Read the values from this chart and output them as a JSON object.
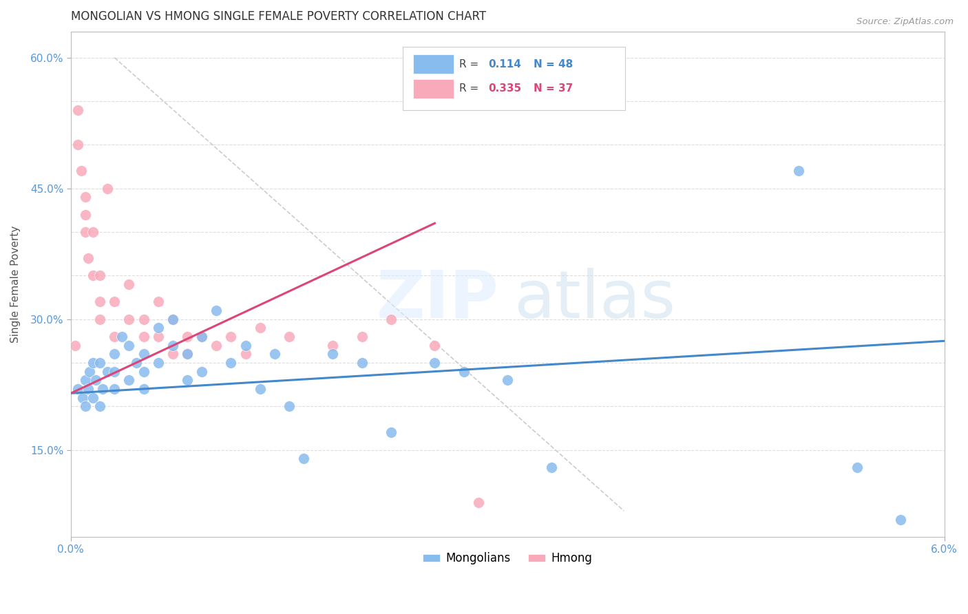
{
  "title": "MONGOLIAN VS HMONG SINGLE FEMALE POVERTY CORRELATION CHART",
  "source": "Source: ZipAtlas.com",
  "ylabel": "Single Female Poverty",
  "x_min": 0.0,
  "x_max": 0.06,
  "y_min": 0.05,
  "y_max": 0.63,
  "mongolian_R": 0.114,
  "mongolian_N": 48,
  "hmong_R": 0.335,
  "hmong_N": 37,
  "mongolian_color": "#88bbee",
  "hmong_color": "#f8aabb",
  "mongolian_line_color": "#4488cc",
  "hmong_line_color": "#dd4477",
  "diagonal_color": "#cccccc",
  "mongolian_x": [
    0.0005,
    0.0008,
    0.001,
    0.001,
    0.0012,
    0.0013,
    0.0015,
    0.0015,
    0.0017,
    0.002,
    0.002,
    0.0022,
    0.0025,
    0.003,
    0.003,
    0.003,
    0.0035,
    0.004,
    0.004,
    0.0045,
    0.005,
    0.005,
    0.005,
    0.006,
    0.006,
    0.007,
    0.007,
    0.008,
    0.008,
    0.009,
    0.009,
    0.01,
    0.011,
    0.012,
    0.013,
    0.014,
    0.015,
    0.016,
    0.018,
    0.02,
    0.022,
    0.025,
    0.027,
    0.03,
    0.033,
    0.05,
    0.054,
    0.057
  ],
  "mongolian_y": [
    0.22,
    0.21,
    0.23,
    0.2,
    0.22,
    0.24,
    0.21,
    0.25,
    0.23,
    0.2,
    0.25,
    0.22,
    0.24,
    0.26,
    0.22,
    0.24,
    0.28,
    0.23,
    0.27,
    0.25,
    0.26,
    0.22,
    0.24,
    0.29,
    0.25,
    0.27,
    0.3,
    0.23,
    0.26,
    0.24,
    0.28,
    0.31,
    0.25,
    0.27,
    0.22,
    0.26,
    0.2,
    0.14,
    0.26,
    0.25,
    0.17,
    0.25,
    0.24,
    0.23,
    0.13,
    0.47,
    0.13,
    0.07
  ],
  "hmong_x": [
    0.0003,
    0.0005,
    0.0005,
    0.0007,
    0.001,
    0.001,
    0.001,
    0.0012,
    0.0015,
    0.0015,
    0.002,
    0.002,
    0.002,
    0.0025,
    0.003,
    0.003,
    0.004,
    0.004,
    0.005,
    0.005,
    0.006,
    0.006,
    0.007,
    0.007,
    0.008,
    0.008,
    0.009,
    0.01,
    0.011,
    0.012,
    0.013,
    0.015,
    0.018,
    0.02,
    0.022,
    0.025,
    0.028
  ],
  "hmong_y": [
    0.27,
    0.54,
    0.5,
    0.47,
    0.44,
    0.42,
    0.4,
    0.37,
    0.4,
    0.35,
    0.32,
    0.35,
    0.3,
    0.45,
    0.28,
    0.32,
    0.3,
    0.34,
    0.28,
    0.3,
    0.28,
    0.32,
    0.26,
    0.3,
    0.28,
    0.26,
    0.28,
    0.27,
    0.28,
    0.26,
    0.29,
    0.28,
    0.27,
    0.28,
    0.3,
    0.27,
    0.09
  ]
}
